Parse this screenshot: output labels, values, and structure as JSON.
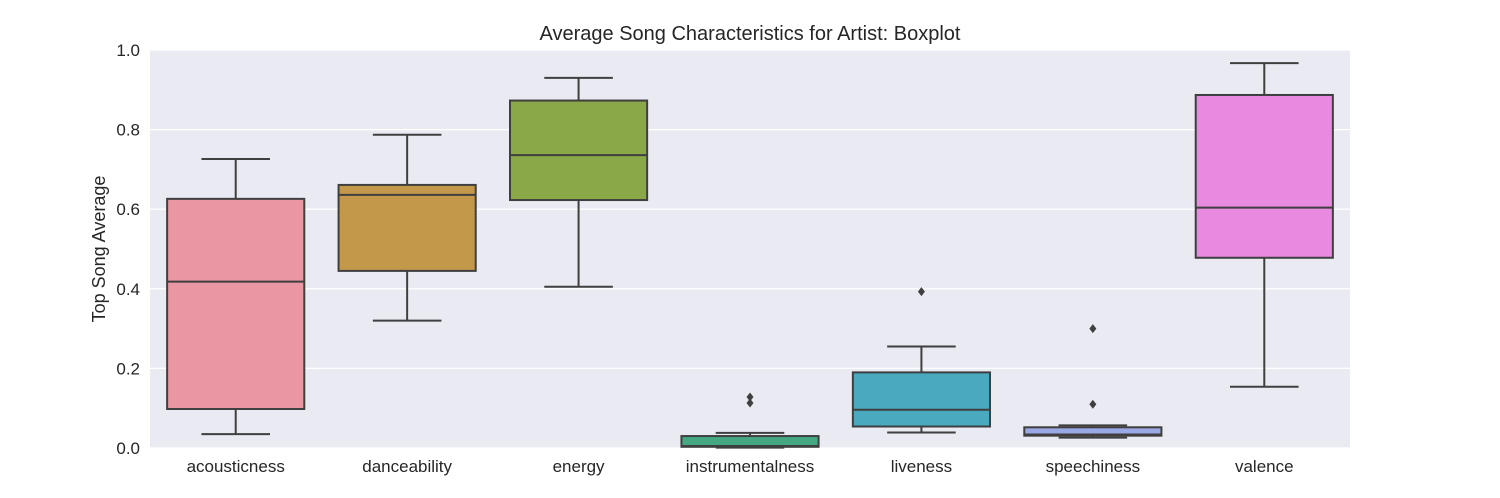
{
  "chart_data": {
    "type": "boxplot",
    "title": "Average Song Characteristics for Artist: Boxplot",
    "xlabel": "",
    "ylabel": "Top Song Average",
    "ylim": [
      0,
      1
    ],
    "yticks": [
      "0.0",
      "0.2",
      "0.4",
      "0.6",
      "0.8",
      "1.0"
    ],
    "grid": true,
    "background": "#eaeaf2",
    "categories": [
      "acousticness",
      "danceability",
      "energy",
      "instrumentalness",
      "liveness",
      "speechiness",
      "valence"
    ],
    "boxes": [
      {
        "category": "acousticness",
        "color": "#ea96a3",
        "whisker_low": 0.035,
        "q1": 0.098,
        "median": 0.418,
        "q3": 0.626,
        "whisker_high": 0.726,
        "outliers": []
      },
      {
        "category": "danceability",
        "color": "#c3984a",
        "whisker_low": 0.32,
        "q1": 0.445,
        "median": 0.636,
        "q3": 0.661,
        "whisker_high": 0.787,
        "outliers": []
      },
      {
        "category": "energy",
        "color": "#8aa848",
        "whisker_low": 0.405,
        "q1": 0.623,
        "median": 0.736,
        "q3": 0.873,
        "whisker_high": 0.93,
        "outliers": []
      },
      {
        "category": "instrumentalness",
        "color": "#44a982",
        "whisker_low": 0.001,
        "q1": 0.003,
        "median": 0.005,
        "q3": 0.03,
        "whisker_high": 0.038,
        "outliers": [
          0.113,
          0.128
        ]
      },
      {
        "category": "liveness",
        "color": "#49a9be",
        "whisker_low": 0.039,
        "q1": 0.054,
        "median": 0.096,
        "q3": 0.19,
        "whisker_high": 0.255,
        "outliers": [
          0.393
        ]
      },
      {
        "category": "speechiness",
        "color": "#9aa8e5",
        "whisker_low": 0.026,
        "q1": 0.031,
        "median": 0.034,
        "q3": 0.052,
        "whisker_high": 0.057,
        "outliers": [
          0.11,
          0.3
        ]
      },
      {
        "category": "valence",
        "color": "#e88be0",
        "whisker_low": 0.154,
        "q1": 0.478,
        "median": 0.604,
        "q3": 0.887,
        "whisker_high": 0.967,
        "outliers": []
      }
    ]
  }
}
